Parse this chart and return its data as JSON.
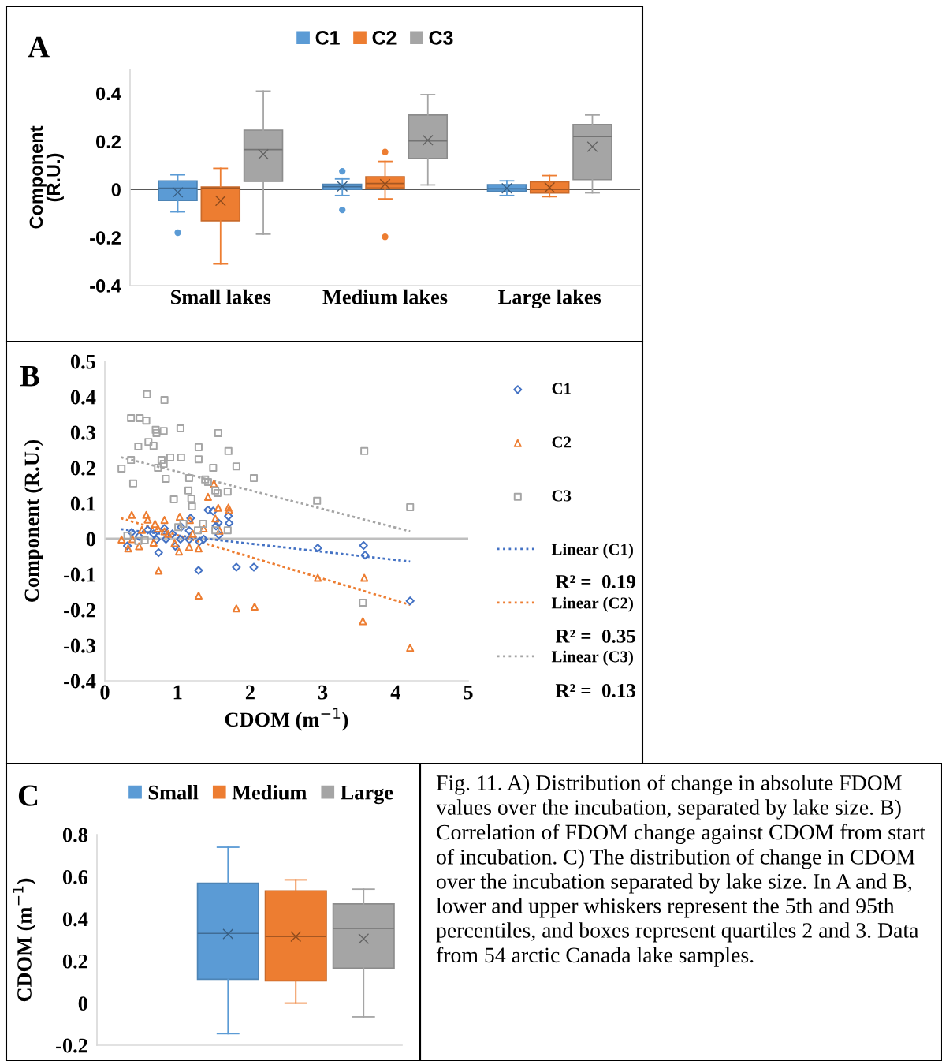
{
  "chart_data": [
    {
      "type": "box",
      "title": "A",
      "ylabel": "Component\n(R.U.)",
      "categories": [
        "Small lakes",
        "Medium lakes",
        "Large lakes"
      ],
      "series": [
        {
          "name": "C1",
          "color": "#5b9bd5",
          "boxes": [
            {
              "low": -0.093,
              "q1": -0.046,
              "median": 0.005,
              "q3": 0.036,
              "high": 0.061,
              "mean": -0.012,
              "outliers": [
                -0.18
              ]
            },
            {
              "low": -0.025,
              "q1": 0.0,
              "median": 0.012,
              "q3": 0.022,
              "high": 0.044,
              "mean": 0.013,
              "outliers": [
                0.076,
                -0.085
              ]
            },
            {
              "low": -0.025,
              "q1": -0.008,
              "median": 0.003,
              "q3": 0.02,
              "high": 0.036,
              "mean": 0.005
            }
          ]
        },
        {
          "name": "C2",
          "color": "#ed7d31",
          "boxes": [
            {
              "low": -0.31,
              "q1": -0.13,
              "median": 0.005,
              "q3": 0.01,
              "high": 0.088,
              "mean": -0.047
            },
            {
              "low": -0.039,
              "q1": 0.007,
              "median": 0.025,
              "q3": 0.053,
              "high": 0.117,
              "mean": 0.022,
              "outliers": [
                0.156,
                -0.197
              ]
            },
            {
              "low": -0.03,
              "q1": -0.015,
              "median": 0.0,
              "q3": 0.032,
              "high": 0.058,
              "mean": 0.008
            }
          ]
        },
        {
          "name": "C3",
          "color": "#a5a5a5",
          "boxes": [
            {
              "low": -0.186,
              "q1": 0.034,
              "median": 0.166,
              "q3": 0.247,
              "high": 0.41,
              "mean": 0.147
            },
            {
              "low": 0.019,
              "q1": 0.129,
              "median": 0.202,
              "q3": 0.31,
              "high": 0.395,
              "mean": 0.205
            },
            {
              "low": -0.014,
              "q1": 0.041,
              "median": 0.22,
              "q3": 0.271,
              "high": 0.31,
              "mean": 0.178
            }
          ]
        }
      ],
      "ylim": [
        -0.4,
        0.5
      ],
      "yticks": [
        -0.4,
        -0.2,
        0,
        0.2,
        0.4
      ],
      "legend": "top",
      "ref_lines": [
        {
          "axis": "y",
          "value": 0,
          "color": "#595959"
        }
      ]
    },
    {
      "type": "scatter",
      "title": "B",
      "xlabel": "CDOM (m$^{−1}$)",
      "ylabel": "Component (R.U.)",
      "xlim": [
        0,
        5
      ],
      "xticks": [
        0,
        1,
        2,
        3,
        4,
        5
      ],
      "ylim": [
        -0.4,
        0.5
      ],
      "yticks": [
        -0.4,
        -0.3,
        -0.2,
        -0.1,
        0,
        0.1,
        0.2,
        0.3,
        0.4,
        0.5
      ],
      "series": [
        {
          "name": "C1",
          "color": "#4472c4",
          "marker": "diamond",
          "x": [
            0.74,
            1.29,
            1.81,
            2.05,
            2.93,
            3.56,
            3.58,
            4.2,
            1.42,
            1.49,
            1.7,
            1.71,
            1.56,
            1.53,
            1.18,
            0.97,
            1.04,
            0.31,
            0.37,
            0.47,
            0.59,
            0.67,
            0.82,
            0.84,
            0.93,
            1.16,
            1.16,
            1.3,
            1.36,
            1.57,
            0.71,
            1.05
          ],
          "values": [
            -0.039,
            -0.089,
            -0.08,
            -0.08,
            -0.026,
            -0.019,
            -0.046,
            -0.175,
            0.081,
            0.078,
            0.064,
            0.044,
            0.045,
            0.036,
            0.058,
            -0.021,
            -0.001,
            -0.02,
            0.018,
            0.007,
            0.025,
            0.014,
            0.029,
            -0.001,
            0.014,
            0.023,
            -0.002,
            -0.008,
            -0.001,
            0.011,
            -0.002,
            0.033
          ]
        },
        {
          "name": "C2",
          "color": "#ed7d31",
          "marker": "triangle",
          "x": [
            0.37,
            0.57,
            0.59,
            0.82,
            0.69,
            1.03,
            1.17,
            1.5,
            1.42,
            1.56,
            1.7,
            1.71,
            1.52,
            1.58,
            0.74,
            1.29,
            1.81,
            2.06,
            2.93,
            3.57,
            3.55,
            4.2,
            0.23,
            0.32,
            0.47,
            0.67,
            1.02,
            1.16,
            1.29,
            0.96,
            0.82,
            0.73,
            0.51,
            0.38,
            0.87,
            1.36,
            1.21
          ],
          "values": [
            0.067,
            0.067,
            0.054,
            0.053,
            0.042,
            0.062,
            0.053,
            0.155,
            0.118,
            0.087,
            0.088,
            0.081,
            0.057,
            0.023,
            -0.09,
            -0.16,
            -0.196,
            -0.191,
            -0.11,
            -0.11,
            -0.232,
            -0.307,
            -0.002,
            -0.027,
            -0.021,
            -0.011,
            -0.036,
            -0.023,
            -0.027,
            -0.012,
            0.021,
            0.029,
            0.025,
            -0.001,
            0.014,
            0.029,
            0.014
          ]
        },
        {
          "name": "C3",
          "color": "#a5a5a5",
          "marker": "square",
          "x": [
            0.23,
            0.36,
            0.39,
            0.36,
            0.48,
            0.58,
            0.57,
            0.46,
            0.6,
            0.67,
            0.7,
            0.71,
            0.81,
            0.82,
            0.73,
            0.78,
            0.84,
            0.81,
            0.9,
            1.04,
            1.05,
            0.95,
            1.16,
            1.15,
            1.19,
            1.29,
            1.29,
            1.38,
            1.49,
            1.56,
            1.42,
            1.52,
            1.7,
            1.81,
            1.69,
            2.05,
            2.92,
            3.57,
            4.2,
            3.55,
            0.55,
            0.31,
            1.01,
            1.28,
            1.35,
            1.69,
            1.52,
            1.08,
            0.46,
            1.2,
            1.55
          ],
          "values": [
            0.198,
            0.222,
            0.156,
            0.34,
            0.34,
            0.407,
            0.333,
            0.26,
            0.273,
            0.262,
            0.307,
            0.298,
            0.304,
            0.391,
            0.2,
            0.222,
            0.169,
            0.211,
            0.229,
            0.311,
            0.229,
            0.111,
            0.171,
            0.136,
            0.113,
            0.258,
            0.224,
            0.167,
            0.2,
            0.298,
            0.16,
            0.136,
            0.247,
            0.204,
            0.133,
            0.171,
            0.107,
            0.247,
            0.089,
            -0.18,
            -0.004,
            0.009,
            0.033,
            0.024,
            0.042,
            0.024,
            0.024,
            0.042,
            -0.006,
            0.091,
            0.129
          ]
        },
        {
          "name": "Linear (C1)",
          "type": "line",
          "line_style": "dotted",
          "marker": "none",
          "color": "#4472c4",
          "x": [
            0.22,
            4.2
          ],
          "values": [
            0.027,
            -0.064
          ]
        },
        {
          "name": "Linear (C2)",
          "type": "line",
          "line_style": "dotted",
          "marker": "none",
          "color": "#ed7d31",
          "x": [
            0.22,
            4.2
          ],
          "values": [
            0.058,
            -0.186
          ]
        },
        {
          "name": "Linear (C3)",
          "type": "line",
          "line_style": "dotted",
          "marker": "none",
          "color": "#a5a5a5",
          "x": [
            0.22,
            4.2
          ],
          "values": [
            0.23,
            0.021
          ]
        }
      ],
      "legend": "right",
      "annotations": [
        "R² =  0.19",
        "R² =  0.35",
        "R² =  0.13"
      ],
      "ref_lines": [
        {
          "axis": "y",
          "value": 0,
          "color": "#bfbfbf"
        }
      ]
    },
    {
      "type": "box",
      "title": "C",
      "ylabel": "CDOM (m$^{−1}$)",
      "categories": [
        null
      ],
      "series": [
        {
          "name": "Small",
          "color": "#5b9bd5",
          "boxes": [
            {
              "low": -0.145,
              "q1": 0.113,
              "median": 0.331,
              "q3": 0.569,
              "high": 0.74,
              "mean": 0.328
            }
          ]
        },
        {
          "name": "Medium",
          "color": "#ed7d31",
          "boxes": [
            {
              "low": 0.0,
              "q1": 0.106,
              "median": 0.316,
              "q3": 0.533,
              "high": 0.585,
              "mean": 0.316
            }
          ]
        },
        {
          "name": "Large",
          "color": "#a5a5a5",
          "boxes": [
            {
              "low": -0.065,
              "q1": 0.166,
              "median": 0.355,
              "q3": 0.471,
              "high": 0.541,
              "mean": 0.306
            }
          ]
        }
      ],
      "ylim": [
        -0.2,
        0.8
      ],
      "yticks": [
        -0.2,
        0,
        0.2,
        0.4,
        0.6,
        0.8
      ],
      "legend": "top",
      "annotations": [
        "Fig. 11. A) Distribution of change in absolute FDOM values over the incubation, separated by lake size. B) Correlation of FDOM change against CDOM from start of incubation. C) The distribution of change in CDOM over the incubation separated by lake size. In A and B, lower and upper whiskers represent the 5th and 95th percentiles, and boxes represent quartiles 2 and 3. Data from 54 arctic Canada lake samples."
      ]
    }
  ]
}
